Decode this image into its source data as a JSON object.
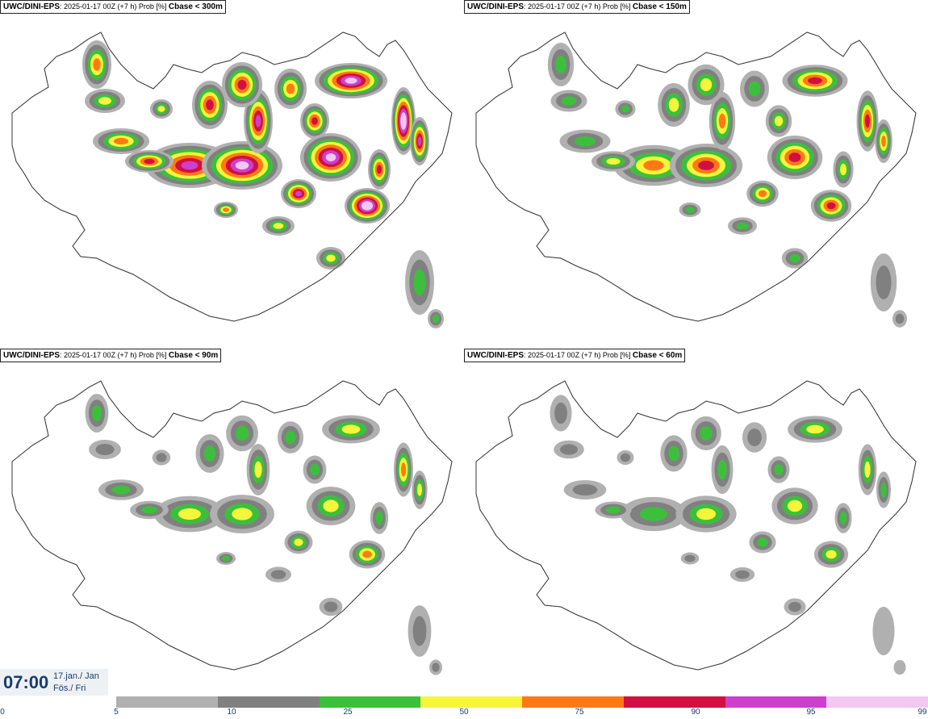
{
  "panels": [
    {
      "model": "UWC/DINI-EPS",
      "run": "2025-01-17 00Z (+7 h) Prob [%]",
      "metric": "Cbase < 300m",
      "intensity": 1.0
    },
    {
      "model": "UWC/DINI-EPS",
      "run": "2025-01-17 00Z (+7 h) Prob [%]",
      "metric": "Cbase < 150m",
      "intensity": 0.78
    },
    {
      "model": "UWC/DINI-EPS",
      "run": "2025-01-17 00Z (+7 h) Prob [%]",
      "metric": "Cbase < 90m",
      "intensity": 0.55
    },
    {
      "model": "UWC/DINI-EPS",
      "run": "2025-01-17 00Z (+7 h) Prob [%]",
      "metric": "Cbase < 60m",
      "intensity": 0.45
    }
  ],
  "time": {
    "clock": "07:00",
    "date_line": "17.jan./ Jan",
    "day_line": "Fös./ Fri"
  },
  "colorbar": {
    "ticks": [
      "0",
      "5",
      "10",
      "25",
      "50",
      "75",
      "90",
      "95",
      "99"
    ],
    "bins": [
      {
        "from": 5,
        "to": 10,
        "color": "#b0b0b0"
      },
      {
        "from": 10,
        "to": 25,
        "color": "#808080"
      },
      {
        "from": 25,
        "to": 50,
        "color": "#3cc03c"
      },
      {
        "from": 50,
        "to": 75,
        "color": "#f5f53c"
      },
      {
        "from": 75,
        "to": 90,
        "color": "#ff7a14"
      },
      {
        "from": 90,
        "to": 95,
        "color": "#d01040"
      },
      {
        "from": 95,
        "to": 99,
        "color": "#cc40cc"
      },
      {
        "from": 99,
        "to": 100,
        "color": "#f0c8f0"
      }
    ]
  }
}
